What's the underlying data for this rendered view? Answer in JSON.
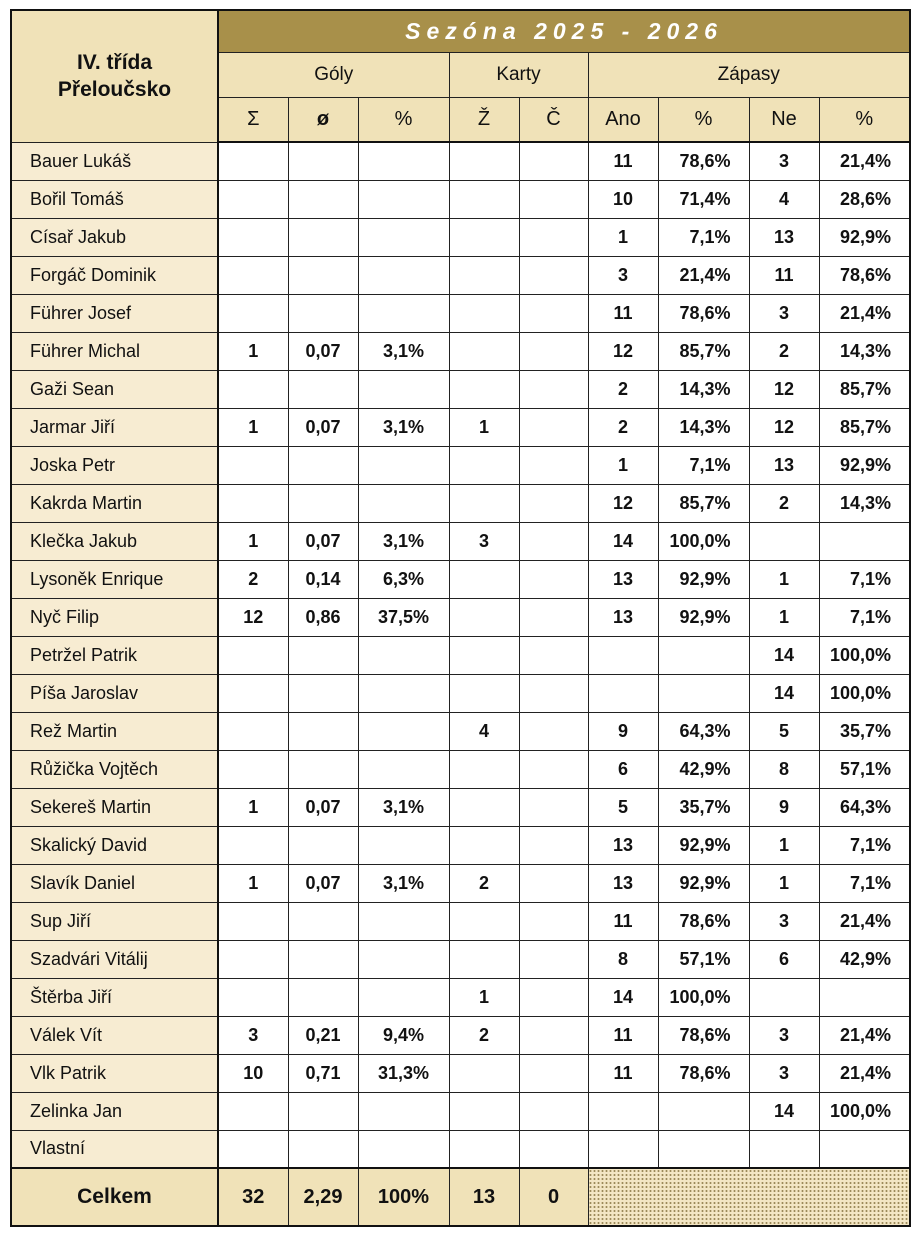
{
  "team_line1": "IV. třída",
  "team_line2": "Přeloučsko",
  "season": "Sezóna  2025 - 2026",
  "groups": {
    "goals": "Góly",
    "cards": "Karty",
    "matches": "Zápasy"
  },
  "subheaders": {
    "sum": "Σ",
    "avg": "ø",
    "pct": "%",
    "yellow": "Ž",
    "red": "Č",
    "yes": "Ano",
    "yes_pct": "%",
    "no": "Ne",
    "no_pct": "%"
  },
  "players": [
    {
      "name": "Bauer Lukáš",
      "g": "",
      "avg": "",
      "gp": "",
      "y": "",
      "r": "",
      "ano": "11",
      "anop": "78,6%",
      "ne": "3",
      "nep": "21,4%"
    },
    {
      "name": "Bořil Tomáš",
      "g": "",
      "avg": "",
      "gp": "",
      "y": "",
      "r": "",
      "ano": "10",
      "anop": "71,4%",
      "ne": "4",
      "nep": "28,6%"
    },
    {
      "name": "Císař Jakub",
      "g": "",
      "avg": "",
      "gp": "",
      "y": "",
      "r": "",
      "ano": "1",
      "anop": "7,1%",
      "ne": "13",
      "nep": "92,9%"
    },
    {
      "name": "Forgáč Dominik",
      "g": "",
      "avg": "",
      "gp": "",
      "y": "",
      "r": "",
      "ano": "3",
      "anop": "21,4%",
      "ne": "11",
      "nep": "78,6%"
    },
    {
      "name": "Führer Josef",
      "g": "",
      "avg": "",
      "gp": "",
      "y": "",
      "r": "",
      "ano": "11",
      "anop": "78,6%",
      "ne": "3",
      "nep": "21,4%"
    },
    {
      "name": "Führer Michal",
      "g": "1",
      "avg": "0,07",
      "gp": "3,1%",
      "y": "",
      "r": "",
      "ano": "12",
      "anop": "85,7%",
      "ne": "2",
      "nep": "14,3%"
    },
    {
      "name": "Gaži Sean",
      "g": "",
      "avg": "",
      "gp": "",
      "y": "",
      "r": "",
      "ano": "2",
      "anop": "14,3%",
      "ne": "12",
      "nep": "85,7%"
    },
    {
      "name": "Jarmar Jiří",
      "g": "1",
      "avg": "0,07",
      "gp": "3,1%",
      "y": "1",
      "r": "",
      "ano": "2",
      "anop": "14,3%",
      "ne": "12",
      "nep": "85,7%"
    },
    {
      "name": "Joska Petr",
      "g": "",
      "avg": "",
      "gp": "",
      "y": "",
      "r": "",
      "ano": "1",
      "anop": "7,1%",
      "ne": "13",
      "nep": "92,9%"
    },
    {
      "name": "Kakrda Martin",
      "g": "",
      "avg": "",
      "gp": "",
      "y": "",
      "r": "",
      "ano": "12",
      "anop": "85,7%",
      "ne": "2",
      "nep": "14,3%"
    },
    {
      "name": "Klečka Jakub",
      "g": "1",
      "avg": "0,07",
      "gp": "3,1%",
      "y": "3",
      "r": "",
      "ano": "14",
      "anop": "100,0%",
      "ne": "",
      "nep": ""
    },
    {
      "name": "Lysoněk Enrique",
      "g": "2",
      "avg": "0,14",
      "gp": "6,3%",
      "y": "",
      "r": "",
      "ano": "13",
      "anop": "92,9%",
      "ne": "1",
      "nep": "7,1%"
    },
    {
      "name": "Nyč Filip",
      "g": "12",
      "avg": "0,86",
      "gp": "37,5%",
      "y": "",
      "r": "",
      "ano": "13",
      "anop": "92,9%",
      "ne": "1",
      "nep": "7,1%"
    },
    {
      "name": "Petržel Patrik",
      "g": "",
      "avg": "",
      "gp": "",
      "y": "",
      "r": "",
      "ano": "",
      "anop": "",
      "ne": "14",
      "nep": "100,0%"
    },
    {
      "name": "Píša Jaroslav",
      "g": "",
      "avg": "",
      "gp": "",
      "y": "",
      "r": "",
      "ano": "",
      "anop": "",
      "ne": "14",
      "nep": "100,0%"
    },
    {
      "name": "Rež Martin",
      "g": "",
      "avg": "",
      "gp": "",
      "y": "4",
      "r": "",
      "ano": "9",
      "anop": "64,3%",
      "ne": "5",
      "nep": "35,7%"
    },
    {
      "name": "Růžička Vojtěch",
      "g": "",
      "avg": "",
      "gp": "",
      "y": "",
      "r": "",
      "ano": "6",
      "anop": "42,9%",
      "ne": "8",
      "nep": "57,1%"
    },
    {
      "name": "Sekereš Martin",
      "g": "1",
      "avg": "0,07",
      "gp": "3,1%",
      "y": "",
      "r": "",
      "ano": "5",
      "anop": "35,7%",
      "ne": "9",
      "nep": "64,3%"
    },
    {
      "name": "Skalický David",
      "g": "",
      "avg": "",
      "gp": "",
      "y": "",
      "r": "",
      "ano": "13",
      "anop": "92,9%",
      "ne": "1",
      "nep": "7,1%"
    },
    {
      "name": "Slavík Daniel",
      "g": "1",
      "avg": "0,07",
      "gp": "3,1%",
      "y": "2",
      "r": "",
      "ano": "13",
      "anop": "92,9%",
      "ne": "1",
      "nep": "7,1%"
    },
    {
      "name": "Sup Jiří",
      "g": "",
      "avg": "",
      "gp": "",
      "y": "",
      "r": "",
      "ano": "11",
      "anop": "78,6%",
      "ne": "3",
      "nep": "21,4%"
    },
    {
      "name": "Szadvári Vitálij",
      "g": "",
      "avg": "",
      "gp": "",
      "y": "",
      "r": "",
      "ano": "8",
      "anop": "57,1%",
      "ne": "6",
      "nep": "42,9%"
    },
    {
      "name": "Štěrba Jiří",
      "g": "",
      "avg": "",
      "gp": "",
      "y": "1",
      "r": "",
      "ano": "14",
      "anop": "100,0%",
      "ne": "",
      "nep": ""
    },
    {
      "name": "Válek Vít",
      "g": "3",
      "avg": "0,21",
      "gp": "9,4%",
      "y": "2",
      "r": "",
      "ano": "11",
      "anop": "78,6%",
      "ne": "3",
      "nep": "21,4%"
    },
    {
      "name": "Vlk Patrik",
      "g": "10",
      "avg": "0,71",
      "gp": "31,3%",
      "y": "",
      "r": "",
      "ano": "11",
      "anop": "78,6%",
      "ne": "3",
      "nep": "21,4%"
    },
    {
      "name": "Zelinka Jan",
      "g": "",
      "avg": "",
      "gp": "",
      "y": "",
      "r": "",
      "ano": "",
      "anop": "",
      "ne": "14",
      "nep": "100,0%"
    },
    {
      "name": "Vlastní",
      "g": "",
      "avg": "",
      "gp": "",
      "y": "",
      "r": "",
      "ano": "",
      "anop": "",
      "ne": "",
      "nep": ""
    }
  ],
  "totals": {
    "label": "Celkem",
    "g": "32",
    "avg": "2,29",
    "gp": "100%",
    "y": "13",
    "r": "0"
  }
}
